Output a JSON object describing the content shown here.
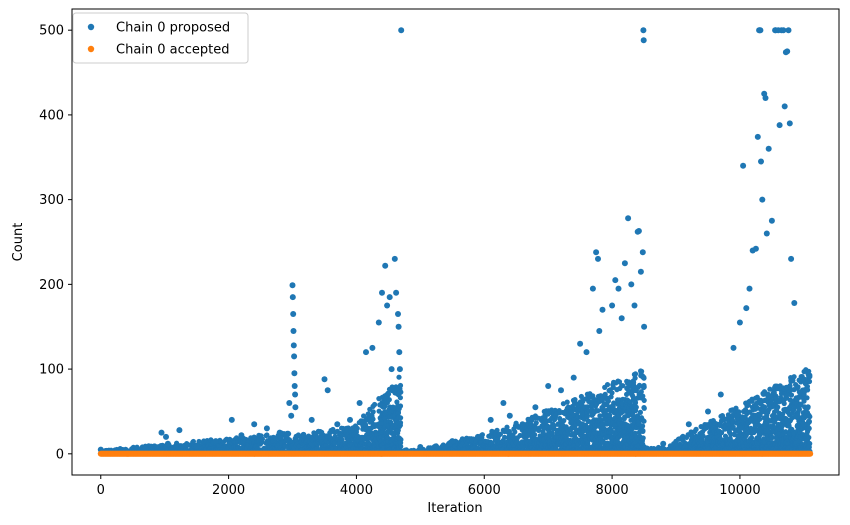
{
  "chart_data": {
    "type": "scatter",
    "xlabel": "Iteration",
    "ylabel": "Count",
    "xlim": [
      -450,
      11550
    ],
    "ylim": [
      -25,
      525
    ],
    "x_ticks": [
      0,
      2000,
      4000,
      6000,
      8000,
      10000
    ],
    "y_ticks": [
      0,
      100,
      200,
      300,
      400,
      500
    ],
    "x_tick_labels": [
      "0",
      "2000",
      "4000",
      "6000",
      "8000",
      "10000"
    ],
    "y_tick_labels": [
      "0",
      "100",
      "200",
      "300",
      "400",
      "500"
    ],
    "legend_position": "upper-left",
    "grid": false,
    "series": [
      {
        "name": "Chain 0 proposed",
        "color": "#1f77b4",
        "points": [
          [
            0,
            5
          ],
          [
            150,
            3
          ],
          [
            400,
            4
          ],
          [
            700,
            6
          ],
          [
            950,
            25
          ],
          [
            1020,
            20
          ],
          [
            1050,
            12
          ],
          [
            1230,
            28
          ],
          [
            1500,
            9
          ],
          [
            1800,
            15
          ],
          [
            2050,
            40
          ],
          [
            2200,
            22
          ],
          [
            2400,
            35
          ],
          [
            2600,
            30
          ],
          [
            2800,
            25
          ],
          [
            2950,
            60
          ],
          [
            2980,
            45
          ],
          [
            3000,
            199
          ],
          [
            3005,
            185
          ],
          [
            3010,
            165
          ],
          [
            3015,
            145
          ],
          [
            3020,
            128
          ],
          [
            3025,
            115
          ],
          [
            3030,
            95
          ],
          [
            3035,
            80
          ],
          [
            3040,
            70
          ],
          [
            3045,
            55
          ],
          [
            3300,
            40
          ],
          [
            3500,
            88
          ],
          [
            3550,
            75
          ],
          [
            3700,
            35
          ],
          [
            3900,
            40
          ],
          [
            4050,
            60
          ],
          [
            4150,
            120
          ],
          [
            4250,
            125
          ],
          [
            4350,
            155
          ],
          [
            4400,
            190
          ],
          [
            4450,
            222
          ],
          [
            4480,
            175
          ],
          [
            4520,
            185
          ],
          [
            4550,
            100
          ],
          [
            4600,
            230
          ],
          [
            4620,
            190
          ],
          [
            4650,
            165
          ],
          [
            4660,
            150
          ],
          [
            4670,
            120
          ],
          [
            4680,
            100
          ],
          [
            4700,
            500
          ],
          [
            5000,
            8
          ],
          [
            5500,
            15
          ],
          [
            5900,
            20
          ],
          [
            6100,
            40
          ],
          [
            6300,
            60
          ],
          [
            6400,
            45
          ],
          [
            6600,
            35
          ],
          [
            6800,
            55
          ],
          [
            7000,
            80
          ],
          [
            7200,
            75
          ],
          [
            7400,
            90
          ],
          [
            7500,
            130
          ],
          [
            7600,
            120
          ],
          [
            7700,
            195
          ],
          [
            7750,
            238
          ],
          [
            7780,
            230
          ],
          [
            7800,
            145
          ],
          [
            7850,
            170
          ],
          [
            8000,
            175
          ],
          [
            8050,
            205
          ],
          [
            8100,
            195
          ],
          [
            8150,
            160
          ],
          [
            8200,
            225
          ],
          [
            8250,
            278
          ],
          [
            8300,
            200
          ],
          [
            8350,
            175
          ],
          [
            8400,
            262
          ],
          [
            8420,
            263
          ],
          [
            8450,
            215
          ],
          [
            8480,
            238
          ],
          [
            8490,
            500
          ],
          [
            8495,
            488
          ],
          [
            8500,
            150
          ],
          [
            8800,
            12
          ],
          [
            9200,
            35
          ],
          [
            9500,
            50
          ],
          [
            9700,
            70
          ],
          [
            9900,
            125
          ],
          [
            10000,
            155
          ],
          [
            10050,
            340
          ],
          [
            10100,
            172
          ],
          [
            10150,
            195
          ],
          [
            10200,
            240
          ],
          [
            10250,
            242
          ],
          [
            10280,
            374
          ],
          [
            10300,
            500
          ],
          [
            10310,
            500
          ],
          [
            10320,
            500
          ],
          [
            10330,
            345
          ],
          [
            10350,
            300
          ],
          [
            10380,
            425
          ],
          [
            10400,
            420
          ],
          [
            10420,
            260
          ],
          [
            10450,
            360
          ],
          [
            10500,
            275
          ],
          [
            10550,
            500
          ],
          [
            10560,
            500
          ],
          [
            10600,
            500
          ],
          [
            10620,
            388
          ],
          [
            10650,
            500
          ],
          [
            10680,
            500
          ],
          [
            10700,
            410
          ],
          [
            10720,
            474
          ],
          [
            10740,
            475
          ],
          [
            10760,
            500
          ],
          [
            10780,
            390
          ],
          [
            10800,
            230
          ],
          [
            10850,
            178
          ],
          [
            10900,
            45
          ],
          [
            11000,
            35
          ],
          [
            11080,
            38
          ]
        ]
      },
      {
        "name": "Chain 0 accepted",
        "color": "#ff7f0e",
        "points": [
          [
            0,
            0
          ],
          [
            11100,
            0
          ]
        ]
      }
    ]
  },
  "legend": {
    "proposed_label": "Chain 0 proposed",
    "accepted_label": "Chain 0 accepted"
  },
  "colors": {
    "proposed": "#1f77b4",
    "accepted": "#ff7f0e"
  }
}
